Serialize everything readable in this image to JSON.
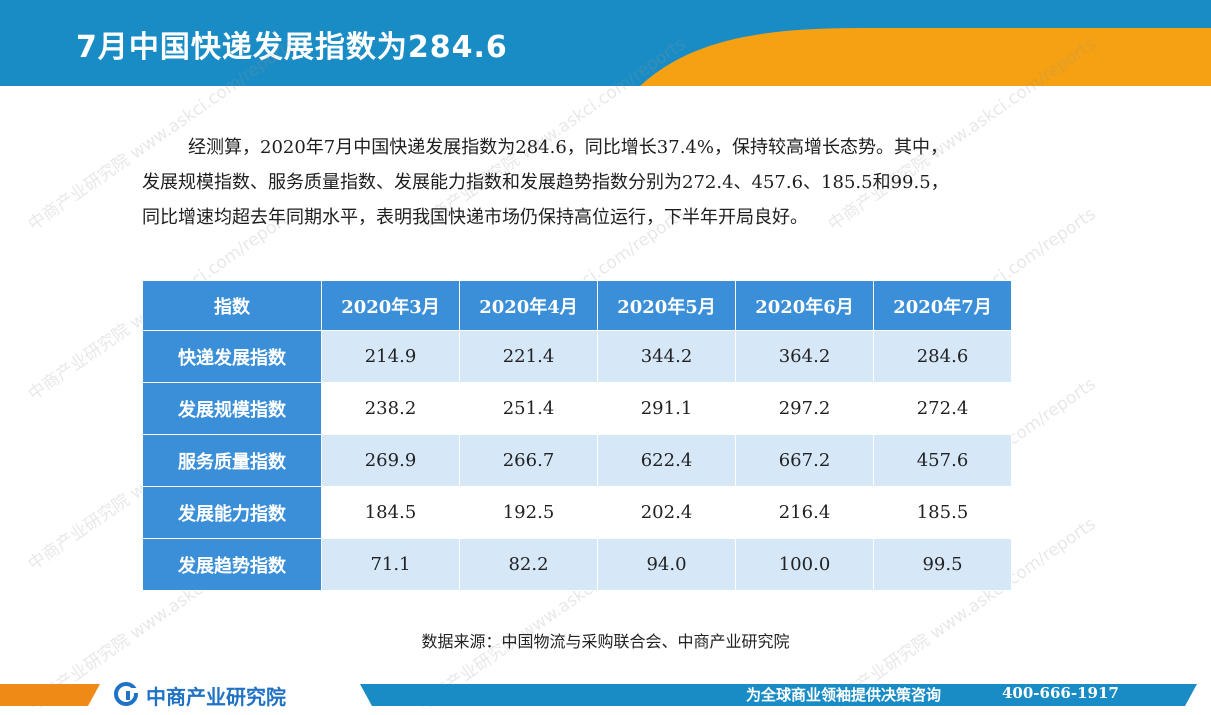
{
  "header": {
    "title": "7月中国快递发展指数为284.6",
    "colors": {
      "blue": "#1a8cc5",
      "orange": "#f5a112"
    }
  },
  "paragraph": {
    "line1": "经测算，2020年7月中国快递发展指数为284.6，同比增长37.4%，保持较高增长态势。其中，",
    "line2": "发展规模指数、服务质量指数、发展能力指数和发展趋势指数分别为272.4、457.6、185.5和99.5，",
    "line3": "同比增速均超去年同期水平，表明我国快递市场仍保持高位运行，下半年开局良好。"
  },
  "table": {
    "headers": [
      "指数",
      "2020年3月",
      "2020年4月",
      "2020年5月",
      "2020年6月",
      "2020年7月"
    ],
    "rows": [
      {
        "label": "快递发展指数",
        "values": [
          "214.9",
          "221.4",
          "344.2",
          "364.2",
          "284.6"
        ]
      },
      {
        "label": "发展规模指数",
        "values": [
          "238.2",
          "251.4",
          "291.1",
          "297.2",
          "272.4"
        ]
      },
      {
        "label": "服务质量指数",
        "values": [
          "269.9",
          "266.7",
          "622.4",
          "667.2",
          "457.6"
        ]
      },
      {
        "label": "发展能力指数",
        "values": [
          "184.5",
          "192.5",
          "202.4",
          "216.4",
          "185.5"
        ]
      },
      {
        "label": "发展趋势指数",
        "values": [
          "71.1",
          "82.2",
          "94.0",
          "100.0",
          "99.5"
        ]
      }
    ]
  },
  "source": "数据来源：中国物流与采购联合会、中商产业研究院",
  "footer": {
    "brand": "中商产业研究院",
    "slogan": "为全球商业领袖提供决策咨询",
    "phone": "400-666-1917"
  },
  "watermark": {
    "text": "中商产业研究院",
    "url": "www.askci.com/reports"
  }
}
